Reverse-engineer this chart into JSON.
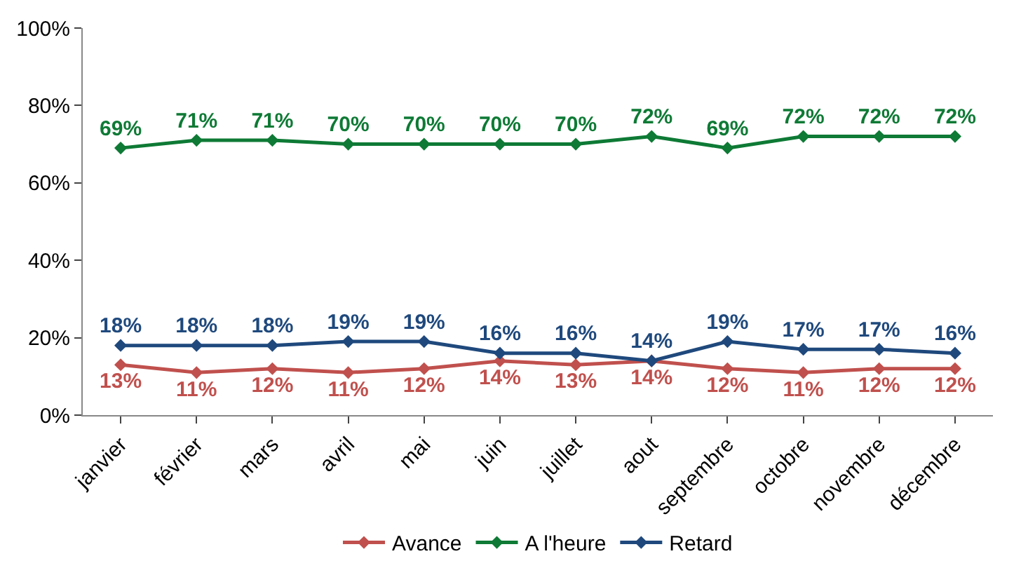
{
  "chart_data": {
    "type": "line",
    "categories": [
      "janvier",
      "février",
      "mars",
      "avril",
      "mai",
      "juin",
      "juillet",
      "aout",
      "septembre",
      "octobre",
      "novembre",
      "décembre"
    ],
    "series": [
      {
        "name": "Avance",
        "color": "#c0504d",
        "values": [
          13,
          11,
          12,
          11,
          12,
          14,
          13,
          14,
          12,
          11,
          12,
          12
        ],
        "value_labels": [
          "13%",
          "11%",
          "12%",
          "11%",
          "12%",
          "14%",
          "13%",
          "14%",
          "12%",
          "11%",
          "12%",
          "12%"
        ]
      },
      {
        "name": "A l'heure",
        "color": "#0e7a35",
        "values": [
          69,
          71,
          71,
          70,
          70,
          70,
          70,
          72,
          69,
          72,
          72,
          72
        ],
        "value_labels": [
          "69%",
          "71%",
          "71%",
          "70%",
          "70%",
          "70%",
          "70%",
          "72%",
          "69%",
          "72%",
          "72%",
          "72%"
        ]
      },
      {
        "name": "Retard",
        "color": "#1f497d",
        "values": [
          18,
          18,
          18,
          19,
          19,
          16,
          16,
          14,
          19,
          17,
          17,
          16
        ],
        "value_labels": [
          "18%",
          "18%",
          "18%",
          "19%",
          "19%",
          "16%",
          "16%",
          "14%",
          "19%",
          "17%",
          "17%",
          "16%"
        ]
      }
    ],
    "ylim": [
      0,
      100
    ],
    "yticks": [
      {
        "value": 0,
        "label": "0%"
      },
      {
        "value": 20,
        "label": "20%"
      },
      {
        "value": 40,
        "label": "40%"
      },
      {
        "value": 60,
        "label": "60%"
      },
      {
        "value": 80,
        "label": "80%"
      },
      {
        "value": 100,
        "label": "100%"
      }
    ],
    "legend": "bottom",
    "marker": "diamond",
    "line_style": "solid"
  }
}
